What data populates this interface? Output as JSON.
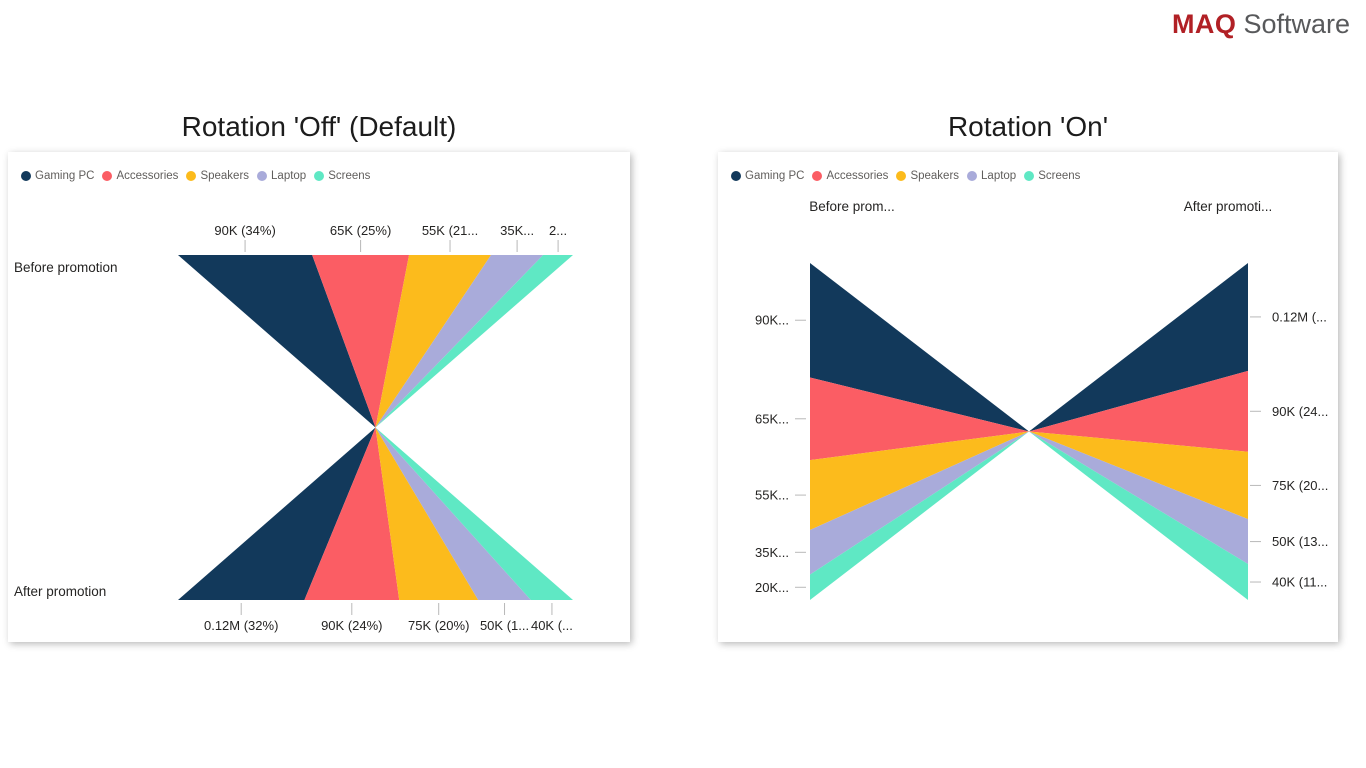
{
  "logo": {
    "maq": "MAQ",
    "software": "Software",
    "maq_color": "#B12025",
    "software_color": "#58595B"
  },
  "chart_data": [
    {
      "type": "funnel-comparison",
      "title": "Rotation 'Off' (Default)",
      "rotation": "off",
      "orientation": "horizontal",
      "legend": [
        "Gaming PC",
        "Accessories",
        "Speakers",
        "Laptop",
        "Screens"
      ],
      "colors": [
        "#12395B",
        "#FB5D64",
        "#FCBB1C",
        "#A9ABDA",
        "#5FE8C4"
      ],
      "legend_position": "top-left",
      "categories": [
        "Before promotion",
        "After promotion"
      ],
      "series": [
        {
          "name": "Before promotion",
          "values": [
            90000,
            65000,
            55000,
            35000,
            20000
          ],
          "tick_labels": [
            "90K (34%)",
            "65K (25%)",
            "55K (21...",
            "35K...",
            "2..."
          ]
        },
        {
          "name": "After promotion",
          "values": [
            120000,
            90000,
            75000,
            50000,
            40000
          ],
          "tick_labels": [
            "0.12M (32%)",
            "90K (24%)",
            "75K (20%)",
            "50K (1...",
            "40K (..."
          ]
        }
      ]
    },
    {
      "type": "funnel-comparison",
      "title": "Rotation 'On'",
      "rotation": "on",
      "orientation": "vertical",
      "legend": [
        "Gaming PC",
        "Accessories",
        "Speakers",
        "Laptop",
        "Screens"
      ],
      "colors": [
        "#12395B",
        "#FB5D64",
        "#FCBB1C",
        "#A9ABDA",
        "#5FE8C4"
      ],
      "legend_position": "top-left",
      "categories": [
        "Before prom...",
        "After promoti..."
      ],
      "series": [
        {
          "name": "Before prom...",
          "values": [
            90000,
            65000,
            55000,
            35000,
            20000
          ],
          "tick_labels": [
            "90K...",
            "65K...",
            "55K...",
            "35K...",
            "20K..."
          ]
        },
        {
          "name": "After promoti...",
          "values": [
            120000,
            90000,
            75000,
            50000,
            40000
          ],
          "tick_labels": [
            "0.12M (...",
            "90K (24...",
            "75K (20...",
            "50K (13...",
            "40K (11..."
          ]
        }
      ]
    }
  ]
}
